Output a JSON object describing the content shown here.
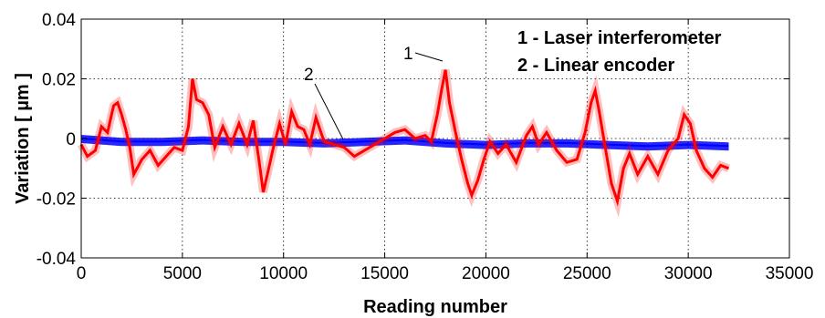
{
  "chart_data": {
    "type": "line",
    "xlabel": "Reading number",
    "ylabel": "Variation [ µm ]",
    "xlim": [
      0,
      35000
    ],
    "ylim": [
      -0.04,
      0.04
    ],
    "xticks": [
      "0",
      "5000",
      "10000",
      "15000",
      "20000",
      "25000",
      "30000",
      "35000"
    ],
    "yticks": [
      "-0.04",
      "-0.02",
      "0",
      "0.02",
      "0.04"
    ],
    "grid": true,
    "legend": {
      "placement": "top-right",
      "entries": [
        "1 - Laser interferometer",
        "2 - Linear encoder"
      ]
    },
    "annotations": [
      {
        "text": "1",
        "points_to_series": "1 - Laser interferometer",
        "x": 17900,
        "y": 0.027
      },
      {
        "text": "2",
        "points_to_series": "2 - Linear encoder",
        "x": 13000,
        "y": -0.001
      }
    ],
    "series": [
      {
        "id": "laser",
        "color": "#ff0000",
        "x": [
          0,
          300,
          700,
          1000,
          1300,
          1600,
          1800,
          2000,
          2200,
          2400,
          2600,
          3000,
          3400,
          3800,
          4200,
          4600,
          5000,
          5300,
          5500,
          5700,
          6000,
          6300,
          6600,
          7000,
          7400,
          7800,
          8200,
          8500,
          8800,
          9000,
          9200,
          9500,
          9800,
          10100,
          10400,
          10700,
          11000,
          11300,
          11600,
          12000,
          12500,
          13000,
          13500,
          14000,
          14500,
          15000,
          15500,
          16000,
          16500,
          17000,
          17300,
          17600,
          17800,
          18000,
          18200,
          18500,
          18800,
          19100,
          19300,
          19600,
          19900,
          20200,
          20600,
          21000,
          21500,
          22000,
          22300,
          22600,
          23000,
          23500,
          24000,
          24500,
          24900,
          25200,
          25400,
          25600,
          25900,
          26200,
          26500,
          26800,
          27100,
          27500,
          28000,
          28500,
          29000,
          29500,
          29800,
          30100,
          30400,
          30800,
          31200,
          31600,
          32000
        ],
        "y": [
          -0.002,
          -0.006,
          -0.004,
          0.004,
          0.002,
          0.011,
          0.012,
          0.008,
          0.003,
          -0.003,
          -0.012,
          -0.007,
          -0.004,
          -0.009,
          -0.006,
          -0.003,
          -0.004,
          0.004,
          0.02,
          0.013,
          0.012,
          0.008,
          -0.003,
          0.004,
          -0.002,
          0.005,
          -0.002,
          0.006,
          -0.008,
          -0.018,
          -0.012,
          -0.003,
          0.005,
          -0.002,
          0.009,
          0.004,
          0.003,
          -0.002,
          0.007,
          -0.001,
          -0.002,
          -0.003,
          -0.006,
          -0.004,
          -0.002,
          0.0,
          0.002,
          0.003,
          0.0,
          0.001,
          -0.001,
          0.008,
          0.016,
          0.023,
          0.012,
          0.002,
          -0.007,
          -0.015,
          -0.019,
          -0.014,
          -0.007,
          -0.001,
          -0.005,
          -0.002,
          -0.008,
          0.001,
          0.004,
          -0.002,
          0.002,
          -0.004,
          -0.008,
          -0.007,
          0.002,
          0.012,
          0.016,
          0.009,
          -0.003,
          -0.015,
          -0.021,
          -0.01,
          -0.005,
          -0.012,
          -0.006,
          -0.012,
          -0.004,
          0.0,
          0.008,
          0.005,
          -0.004,
          -0.01,
          -0.013,
          -0.009,
          -0.01
        ]
      },
      {
        "id": "encoder",
        "color": "#0000ff",
        "x": [
          0,
          2000,
          4000,
          6000,
          8000,
          10000,
          12000,
          14000,
          16000,
          18000,
          20000,
          22000,
          24000,
          26000,
          28000,
          30000,
          32000
        ],
        "y": [
          0.0,
          -0.001,
          -0.001,
          -0.0005,
          -0.001,
          -0.001,
          -0.0015,
          -0.001,
          -0.0005,
          -0.0015,
          -0.002,
          -0.0015,
          -0.0015,
          -0.002,
          -0.0025,
          -0.002,
          -0.0025
        ]
      }
    ]
  }
}
